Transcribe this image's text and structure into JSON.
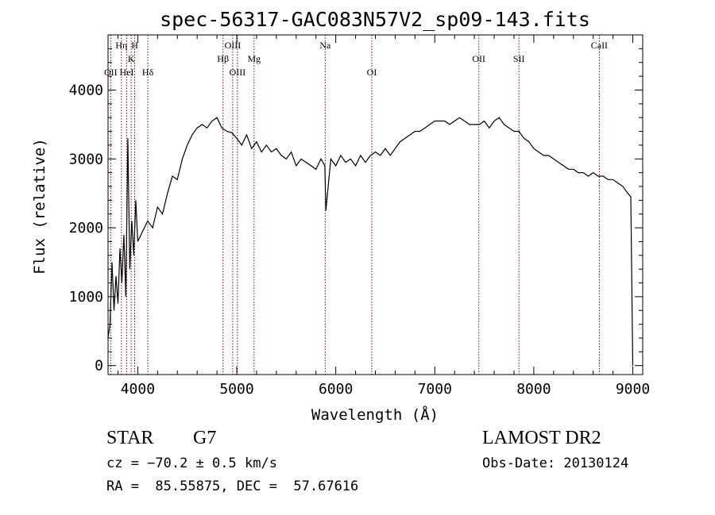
{
  "chart_data": {
    "type": "line",
    "title": "spec-56317-GAC083N57V2_sp09-143.fits",
    "xlabel": "Wavelength (Å)",
    "ylabel": "Flux (relative)",
    "xlim": [
      3700,
      9100
    ],
    "ylim": [
      -130,
      4800
    ],
    "xticks": [
      4000,
      5000,
      6000,
      7000,
      8000,
      9000
    ],
    "yticks": [
      0,
      1000,
      2000,
      3000,
      4000
    ],
    "grid": false,
    "line_color": "#000000",
    "marker_color": "#8b0000",
    "series": [
      {
        "x": [
          3700,
          3720,
          3740,
          3760,
          3780,
          3800,
          3820,
          3840,
          3860,
          3880,
          3900,
          3920,
          3940,
          3960,
          3980,
          4000,
          4050,
          4100,
          4150,
          4200,
          4250,
          4300,
          4350,
          4400,
          4450,
          4500,
          4550,
          4600,
          4650,
          4700,
          4750,
          4800,
          4850,
          4900,
          4950,
          5000,
          5050,
          5100,
          5150,
          5200,
          5250,
          5300,
          5350,
          5400,
          5450,
          5500,
          5550,
          5600,
          5650,
          5700,
          5750,
          5800,
          5850,
          5890,
          5900,
          5950,
          6000,
          6050,
          6100,
          6150,
          6200,
          6250,
          6300,
          6350,
          6400,
          6450,
          6500,
          6550,
          6600,
          6650,
          6700,
          6750,
          6800,
          6850,
          6900,
          6950,
          7000,
          7050,
          7100,
          7150,
          7200,
          7250,
          7300,
          7350,
          7400,
          7450,
          7500,
          7550,
          7600,
          7650,
          7700,
          7750,
          7800,
          7850,
          7900,
          7950,
          8000,
          8050,
          8100,
          8150,
          8200,
          8250,
          8300,
          8350,
          8400,
          8450,
          8500,
          8550,
          8600,
          8650,
          8700,
          8750,
          8800,
          8850,
          8900,
          8950,
          8980,
          9000
        ],
        "values": [
          400,
          600,
          1500,
          800,
          1300,
          900,
          1700,
          1200,
          1900,
          1000,
          3300,
          1400,
          2100,
          1600,
          2400,
          1800,
          1950,
          2100,
          2000,
          2300,
          2200,
          2500,
          2750,
          2700,
          3000,
          3200,
          3350,
          3450,
          3500,
          3450,
          3550,
          3600,
          3450,
          3400,
          3380,
          3300,
          3200,
          3350,
          3150,
          3250,
          3100,
          3200,
          3100,
          3150,
          3050,
          3000,
          3100,
          2900,
          3000,
          2950,
          2900,
          2850,
          3000,
          2900,
          2250,
          3000,
          2900,
          3050,
          2950,
          3000,
          2900,
          3050,
          2950,
          3050,
          3100,
          3050,
          3150,
          3050,
          3150,
          3250,
          3300,
          3350,
          3400,
          3400,
          3450,
          3500,
          3550,
          3550,
          3550,
          3500,
          3550,
          3600,
          3550,
          3500,
          3500,
          3500,
          3550,
          3450,
          3550,
          3600,
          3500,
          3450,
          3400,
          3400,
          3300,
          3250,
          3150,
          3100,
          3050,
          3050,
          3000,
          2950,
          2900,
          2850,
          2850,
          2800,
          2800,
          2750,
          2800,
          2750,
          2750,
          2700,
          2700,
          2650,
          2600,
          2500,
          2450,
          0
        ]
      }
    ],
    "line_markers": [
      {
        "x": 3727,
        "label": "OII",
        "row": 3
      },
      {
        "x": 3835,
        "label": "Hη",
        "row": 1
      },
      {
        "x": 3889,
        "label": "HeI",
        "row": 3
      },
      {
        "x": 3934,
        "label": "K",
        "row": 2
      },
      {
        "x": 3969,
        "label": "H",
        "row": 1
      },
      {
        "x": 4102,
        "label": "Hδ",
        "row": 3
      },
      {
        "x": 4861,
        "label": "Hβ",
        "row": 2
      },
      {
        "x": 4959,
        "label": "OIII",
        "row": 1
      },
      {
        "x": 5007,
        "label": "OIII",
        "row": 3
      },
      {
        "x": 5175,
        "label": "Mg",
        "row": 2
      },
      {
        "x": 5893,
        "label": "Na",
        "row": 1
      },
      {
        "x": 6364,
        "label": "OI",
        "row": 3
      },
      {
        "x": 7445,
        "label": "OII",
        "row": 2
      },
      {
        "x": 7850,
        "label": "SII",
        "row": 2
      },
      {
        "x": 8662,
        "label": "CaII",
        "row": 1
      }
    ]
  },
  "footer": {
    "object_class": "STAR",
    "subclass": "G7",
    "redshift": "cz = −70.2 ± 0.5 km/s",
    "coords": "RA =  85.55875, DEC =  57.67616",
    "survey": "LAMOST DR2",
    "obs_date": "Obs-Date: 20130124"
  }
}
